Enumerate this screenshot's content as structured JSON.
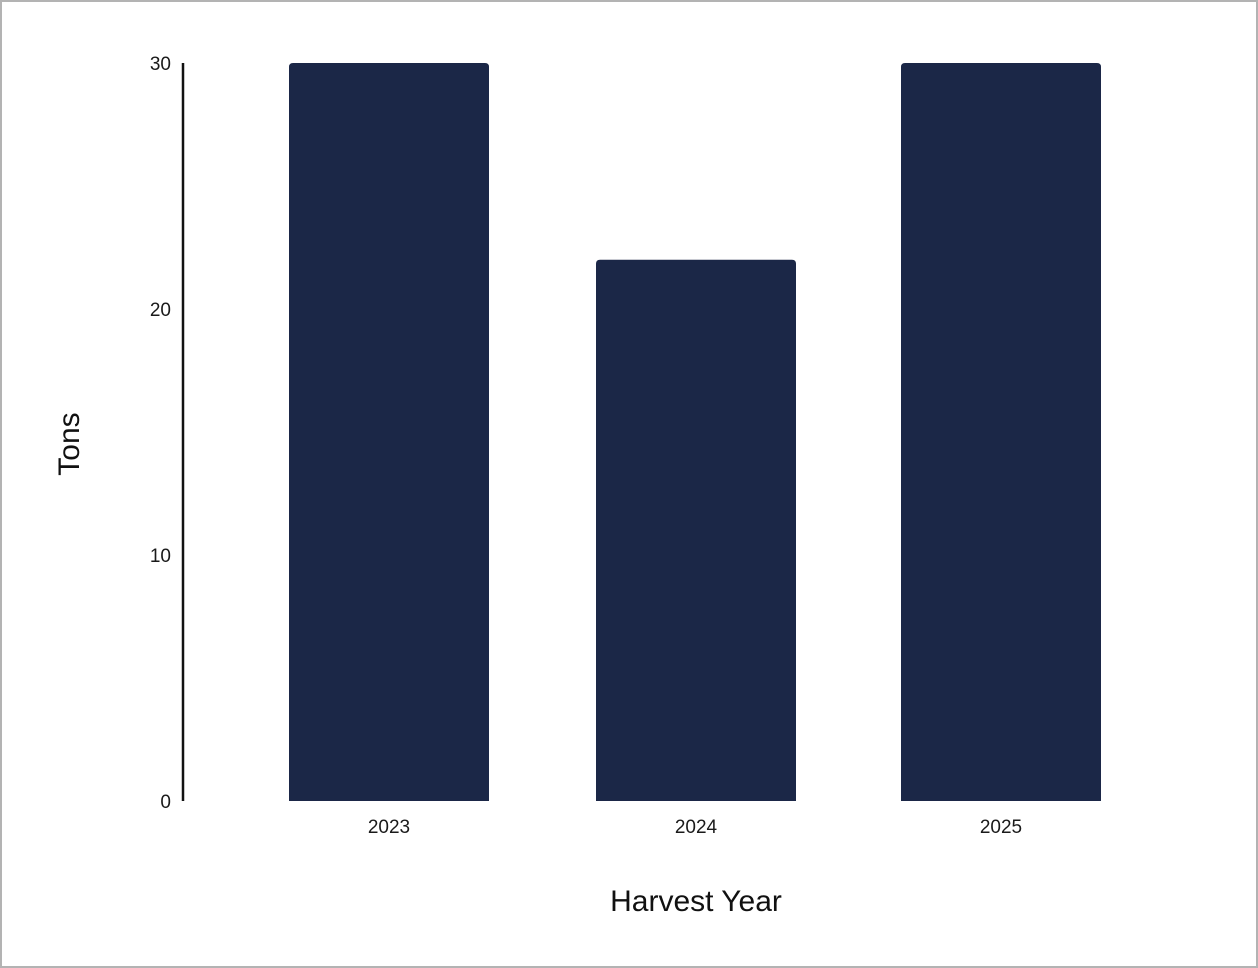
{
  "chart_data": {
    "type": "bar",
    "categories": [
      "2023",
      "2024",
      "2025"
    ],
    "values": [
      30,
      22,
      30
    ],
    "xlabel": "Harvest Year",
    "ylabel": "Tons",
    "ylim": [
      0,
      30
    ],
    "yticks": [
      "0",
      "10",
      "20",
      "30"
    ],
    "grid": false,
    "legend": "none",
    "bar_color": "#1b2747"
  }
}
